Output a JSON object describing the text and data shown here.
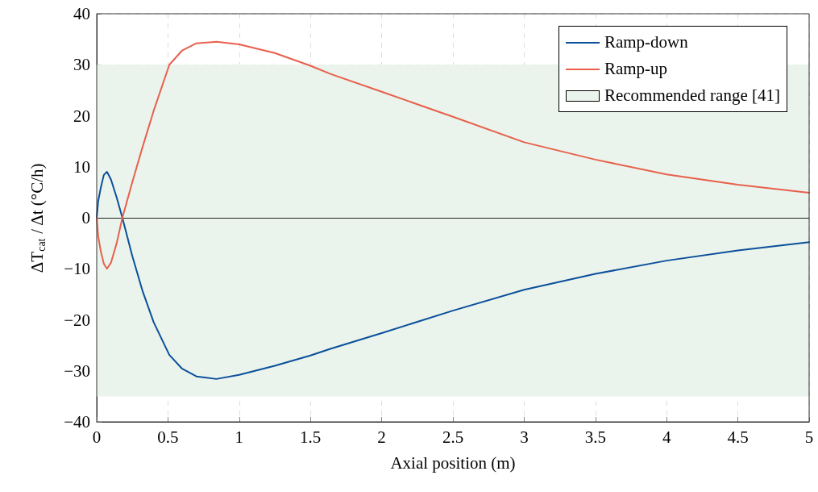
{
  "chart_data": {
    "type": "line",
    "xlabel": "Axial position (m)",
    "ylabel": "ΔT$_{cat}$ / Δt (°C/h)",
    "series": [
      {
        "name": "Ramp-down",
        "color": "#0b4f9c",
        "x": [
          0,
          0.01,
          0.028,
          0.05,
          0.072,
          0.1,
          0.14,
          0.18,
          0.25,
          0.32,
          0.4,
          0.51,
          0.6,
          0.7,
          0.84,
          1.0,
          1.25,
          1.5,
          1.64,
          2,
          2.5,
          3,
          3.5,
          4,
          4.5,
          5
        ],
        "values": [
          0,
          3.2,
          5.8,
          8.4,
          9.0,
          7.5,
          4.0,
          0,
          -7.5,
          -14.2,
          -20.5,
          -26.9,
          -29.6,
          -31.1,
          -31.6,
          -30.8,
          -29.0,
          -27.0,
          -25.7,
          -22.6,
          -18.2,
          -14.1,
          -11.0,
          -8.4,
          -6.4,
          -4.8
        ]
      },
      {
        "name": "Ramp-up",
        "color": "#e8604c",
        "x": [
          0,
          0.01,
          0.028,
          0.05,
          0.072,
          0.1,
          0.14,
          0.18,
          0.25,
          0.32,
          0.4,
          0.51,
          0.6,
          0.7,
          0.84,
          1.0,
          1.25,
          1.5,
          1.64,
          2,
          2.5,
          3,
          3.5,
          4,
          4.5,
          5
        ],
        "values": [
          0,
          -3.5,
          -6.5,
          -9.0,
          -10.0,
          -8.8,
          -5.0,
          0,
          7.0,
          13.7,
          21.0,
          30.0,
          32.8,
          34.2,
          34.5,
          34.0,
          32.3,
          29.8,
          28.2,
          24.7,
          19.8,
          14.8,
          11.4,
          8.5,
          6.5,
          4.9
        ]
      }
    ],
    "bands": [
      {
        "axis": "y",
        "from": -35,
        "to": 30,
        "label": "Recommended range [41]",
        "color": "#eaf4ec"
      }
    ],
    "ref_lines": [
      {
        "axis": "y",
        "value": 0,
        "color": "#222222"
      }
    ],
    "xlim": [
      0,
      5
    ],
    "xticks": [
      0,
      0.5,
      1,
      1.5,
      2,
      2.5,
      3,
      3.5,
      4,
      4.5,
      5
    ],
    "ylim": [
      -40,
      40
    ],
    "yticks": [
      -40,
      -30,
      -20,
      -10,
      0,
      10,
      20,
      30,
      40
    ],
    "grid": true,
    "legend": "top right",
    "marker": "none",
    "line_style": "solid"
  }
}
